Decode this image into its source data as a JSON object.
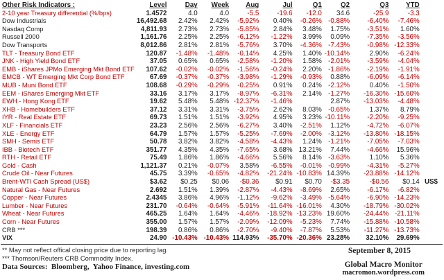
{
  "colors": {
    "negative": "#c00000",
    "text": "#1f1f1f"
  },
  "table": {
    "title": "Other Risk Indicators :",
    "columns": [
      "Level",
      "Day",
      "Week",
      "Aug",
      "Jul",
      "Q1",
      "Q2",
      "Q3",
      "YTD"
    ],
    "rows": [
      {
        "name": "2-10 year Treasury differential (%/bps)",
        "level": "1.4572",
        "values": [
          "4.0",
          "4.0",
          "-5.5",
          "-19.6",
          "-12.0",
          "34.6",
          "-25.9",
          "-3.3"
        ]
      },
      {
        "name": "Dow Industrials",
        "level": "16,492.68",
        "values": [
          "2.42%",
          "2.42%",
          "-5.92%",
          "0.40%",
          "-0.26%",
          "-0.88%",
          "-6.40%",
          "-7.46%"
        ]
      },
      {
        "name": "Nasdaq Comp",
        "level": "4,811.93",
        "values": [
          "2.73%",
          "2.73%",
          "-5.85%",
          "2.84%",
          "3.48%",
          "1.75%",
          "-3.51%",
          "1.60%"
        ]
      },
      {
        "name": "Russell 2000",
        "level": "1,161.76",
        "values": [
          "2.25%",
          "2.25%",
          "-6.12%",
          "-1.22%",
          "3.99%",
          "0.09%",
          "-7.35%",
          "-3.56%"
        ]
      },
      {
        "name": "Dow Transports",
        "level": "8,012.86",
        "values": [
          "2.81%",
          "2.81%",
          "-5.76%",
          "3.70%",
          "-4.36%",
          "-7.43%",
          "-0.98%",
          "-12.33%"
        ]
      },
      {
        "name": "TLT - Treasury Bond ETF",
        "level": "120.87",
        "values": [
          "-1.48%",
          "-1.48%",
          "-0.14%",
          "4.25%",
          "1.40%",
          "-10.14%",
          "2.90%",
          "-6.24%"
        ]
      },
      {
        "name": "JNK - High Yield Bond ETF",
        "level": "37.05",
        "values": [
          "0.65%",
          "0.65%",
          "-2.58%",
          "-1.20%",
          "1.58%",
          "-2.01%",
          "-3.59%",
          "-4.04%"
        ]
      },
      {
        "name": "EMB - iShares JPMo Emerging Mkt Bond ETF",
        "level": "107.62",
        "values": [
          "-0.02%",
          "-0.02%",
          "-1.56%",
          "-0.24%",
          "2.20%",
          "-1.86%",
          "-2.19%",
          "-1.91%"
        ]
      },
      {
        "name": "EMCB - WT Emerging Mkt Corp Bond ETF",
        "level": "67.69",
        "values": [
          "-0.37%",
          "-0.37%",
          "-3.98%",
          "-1.29%",
          "-0.93%",
          "0.88%",
          "-6.09%",
          "-6.14%"
        ]
      },
      {
        "name": "MUB - Muni Bond ETF",
        "level": "108.68",
        "values": [
          "-0.29%",
          "-0.29%",
          "-0.25%",
          "0.91%",
          "0.24%",
          "-2.12%",
          "0.40%",
          "-1.50%"
        ]
      },
      {
        "name": "EEM - iShares Emerging Mkt ETF",
        "level": "33.16",
        "values": [
          "3.17%",
          "3.17%",
          "-8.97%",
          "-6.31%",
          "2.14%",
          "-1.27%",
          "-16.30%",
          "-15.60%"
        ]
      },
      {
        "name": "EWH - Hong Kong ETF",
        "level": "19.62",
        "values": [
          "5.48%",
          "5.48%",
          "-12.37%",
          "-1.46%",
          "",
          "2.87%",
          "-13.03%",
          "-4.48%"
        ]
      },
      {
        "name": "XHB - Homebuilders ETF",
        "level": "37.12",
        "values": [
          "3.31%",
          "3.31%",
          "-3.75%",
          "2.62%",
          "8.03%",
          "-0.65%",
          "1.37%",
          "8.79%"
        ]
      },
      {
        "name": "IYR - Real Estate ETF",
        "level": "69.73",
        "values": [
          "1.51%",
          "1.51%",
          "-3.92%",
          "4.95%",
          "3.23%",
          "-10.11%",
          "-2.20%",
          "-9.25%"
        ]
      },
      {
        "name": "XLF - Financials ETF",
        "level": "23.23",
        "values": [
          "2.56%",
          "2.56%",
          "-6.27%",
          "3.40%",
          "-2.51%",
          "1.12%",
          "-4.72%",
          "-6.07%"
        ]
      },
      {
        "name": "XLE - Energy ETF",
        "level": "64.79",
        "values": [
          "1.57%",
          "1.57%",
          "-5.25%",
          "-7.69%",
          "-2.00%",
          "-3.12%",
          "-13.80%",
          "-18.15%"
        ]
      },
      {
        "name": "SMH - Semis ETF",
        "level": "50.78",
        "values": [
          "3.82%",
          "3.82%",
          "-4.58%",
          "-4.43%",
          "1.24%",
          "-1.21%",
          "-7.05%",
          "-7.03%"
        ]
      },
      {
        "name": "IBB - Biotech ETF",
        "level": "351.77",
        "values": [
          "4.35%",
          "4.35%",
          "-7.65%",
          "3.68%",
          "13.21%",
          "7.44%",
          "-4.66%",
          "15.96%"
        ]
      },
      {
        "name": "RTH - Retail ETF",
        "level": "75.49",
        "values": [
          "1.86%",
          "1.86%",
          "-4.66%",
          "5.56%",
          "8.14%",
          "-3.63%",
          "1.10%",
          "5.36%"
        ]
      },
      {
        "name": "Gold - Cash",
        "level": "1,121.37",
        "values": [
          "0.21%",
          "-0.07%",
          "3.58%",
          "-6.55%",
          "-0.01%",
          "-0.99%",
          "-4.31%",
          "-5.27%"
        ]
      },
      {
        "name": "Crude Oil - Near Futures",
        "level": "45.75",
        "values": [
          "3.39%",
          "-0.65%",
          "-4.82%",
          "-21.24%",
          "-10.83%",
          "14.39%",
          "-23.88%",
          "-14.12%"
        ]
      },
      {
        "name": "Brent-WTI Cash Spread (US$)",
        "level": "$3.62",
        "values": [
          "$0.25",
          "$0.06",
          "-$0.36",
          "$0.91",
          "$0.70",
          "-$3.35",
          "-$0.56",
          "$0.14"
        ],
        "suffix": "US$"
      },
      {
        "name": "Natural Gas - Near Futures",
        "level": "2.692",
        "values": [
          "1.51%",
          "1.39%",
          "-2.87%",
          "-4.43%",
          "-8.69%",
          "2.65%",
          "-6.17%",
          "-6.82%"
        ]
      },
      {
        "name": "Copper - Near Futures",
        "level": "2.4345",
        "values": [
          "3.86%",
          "4.96%",
          "-1.12%",
          "-9.62%",
          "-3.49%",
          "-5.64%",
          "-6.90%",
          "-14.23%"
        ]
      },
      {
        "name": "Lumber - Near Futures",
        "level": "231.70",
        "values": [
          "-0.64%",
          "-0.64%",
          "-5.91%",
          "-11.64%",
          "-16.01%",
          "4.30%",
          "-18.79%",
          "-30.02%"
        ]
      },
      {
        "name": "Wheat - Near Futures",
        "level": "465.25",
        "values": [
          "1.64%",
          "1.64%",
          "-4.46%",
          "-18.92%",
          "-13.23%",
          "19.60%",
          "-24.44%",
          "-21.11%"
        ]
      },
      {
        "name": "Corn - Near Futures",
        "level": "355.00",
        "values": [
          "1.57%",
          "1.57%",
          "-2.09%",
          "-12.09%",
          "-5.23%",
          "7.74%",
          "-15.88%",
          "-10.58%"
        ]
      },
      {
        "name": "CRB ***",
        "level": "198.39",
        "values": [
          "0.86%",
          "0.86%",
          "-2.70%",
          "-9.40%",
          "-7.87%",
          "5.53%",
          "-11.27%",
          "-13.73%"
        ]
      },
      {
        "name": "VIX",
        "bold": true,
        "level": "24.90",
        "values": [
          "-10.43%",
          "-10.43%",
          "114.93%",
          "-35.70%",
          "-20.36%",
          "23.28%",
          "32.10%",
          "29.69%"
        ]
      }
    ]
  },
  "footnotes": {
    "reporting_lag": "** May not reflect offical closing price due to reporting lag.",
    "crb_index": "*** Thomson/Reuters CRB Commodity Index.",
    "data_sources": "Data Sources:  Bloomberg,  Yahoo Finance, investing.com"
  },
  "footer": {
    "date": "September 8, 2015",
    "publication": "Global Macro Monitor",
    "website": "macromon.wordpress.com"
  }
}
